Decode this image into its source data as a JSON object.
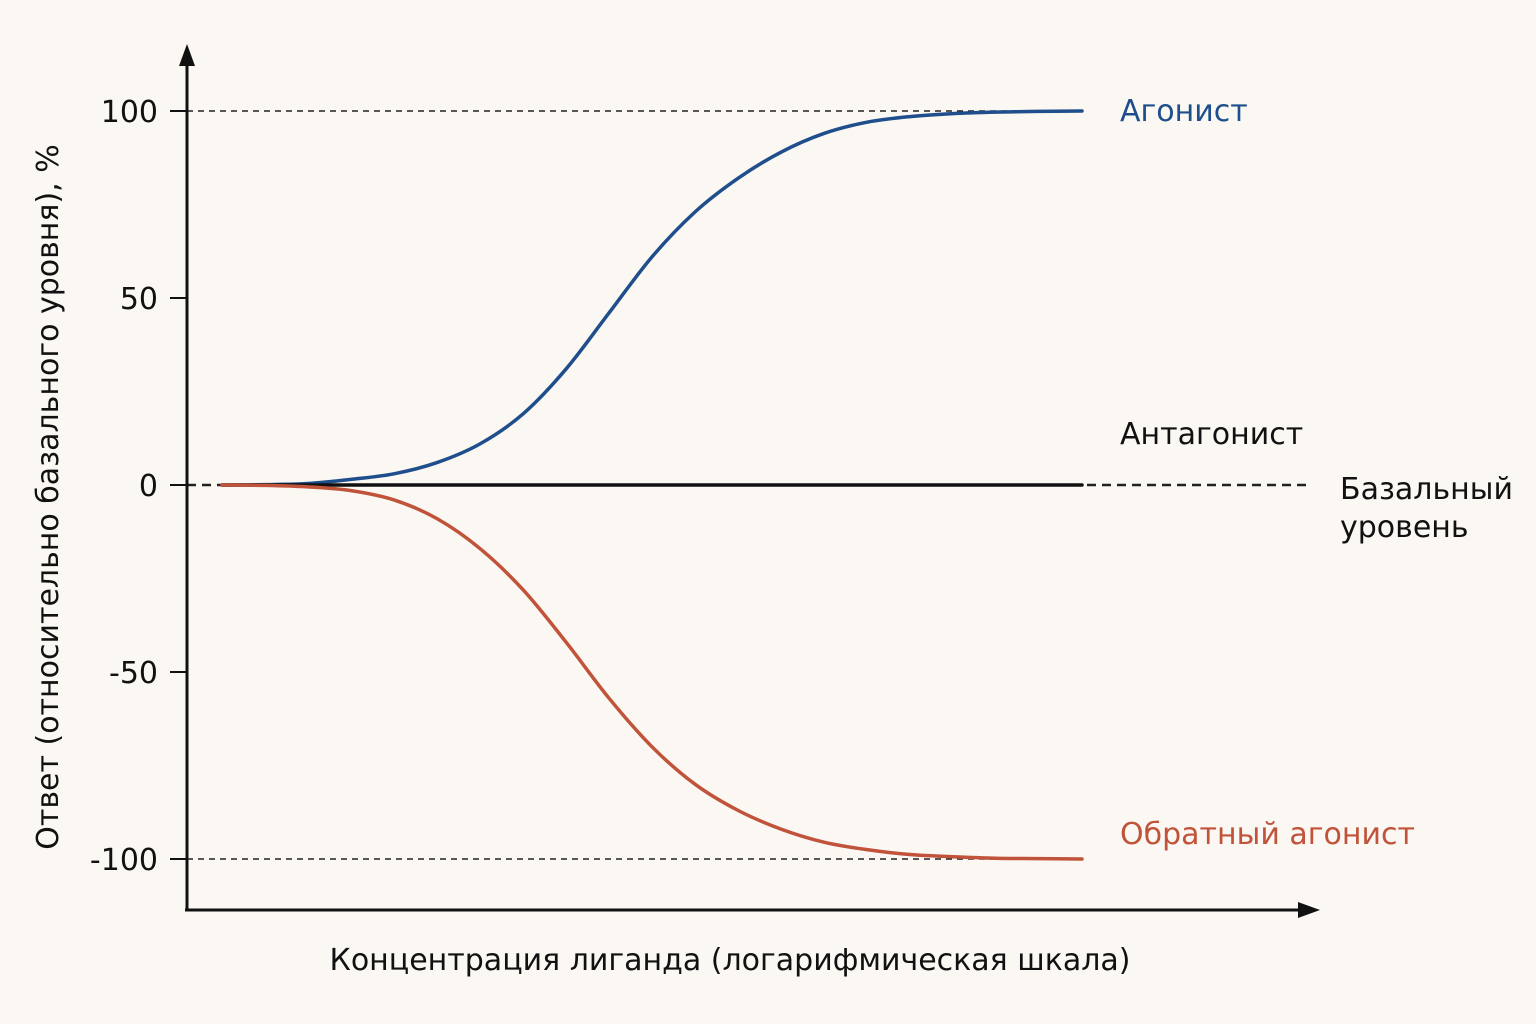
{
  "chart_data": {
    "type": "line",
    "title": "",
    "xlabel": "Концентрация лиганда (логарифмическая шкала)",
    "ylabel": "Ответ (относительно базального уровня), %",
    "ylim": [
      -100,
      100
    ],
    "yticks": [
      "100",
      "50",
      "0",
      "-50",
      "-100"
    ],
    "x": [
      0,
      0.05,
      0.1,
      0.15,
      0.2,
      0.25,
      0.3,
      0.35,
      0.4,
      0.45,
      0.5,
      0.55,
      0.6,
      0.65,
      0.7,
      0.75,
      0.8,
      0.85,
      0.9,
      0.95,
      1.0
    ],
    "series": [
      {
        "name": "Агонист",
        "color": "#1e4e8c",
        "values": [
          0,
          0.1,
          0.4,
          1.5,
          3,
          6,
          11,
          19,
          31,
          46,
          61,
          73,
          82,
          89,
          94,
          97,
          98.5,
          99.3,
          99.7,
          99.9,
          100
        ]
      },
      {
        "name": "Антагонист",
        "color": "#111111",
        "values": [
          0,
          0,
          0,
          0,
          0,
          0,
          0,
          0,
          0,
          0,
          0,
          0,
          0,
          0,
          0,
          0,
          0,
          0,
          0,
          0,
          0
        ]
      },
      {
        "name": "Обратный агонист",
        "color": "#c0533a",
        "values": [
          0,
          -0.1,
          -0.5,
          -1.5,
          -4,
          -9,
          -17,
          -28,
          -42,
          -57,
          -70,
          -80,
          -87,
          -92,
          -95.5,
          -97.5,
          -98.8,
          -99.4,
          -99.8,
          -99.9,
          -100
        ]
      }
    ],
    "reference_lines": [
      {
        "y": 100,
        "style": "dashed"
      },
      {
        "y": 0,
        "style": "dashed",
        "label_line1": "Базальный",
        "label_line2": "уровень"
      },
      {
        "y": -100,
        "style": "dashed"
      }
    ]
  }
}
